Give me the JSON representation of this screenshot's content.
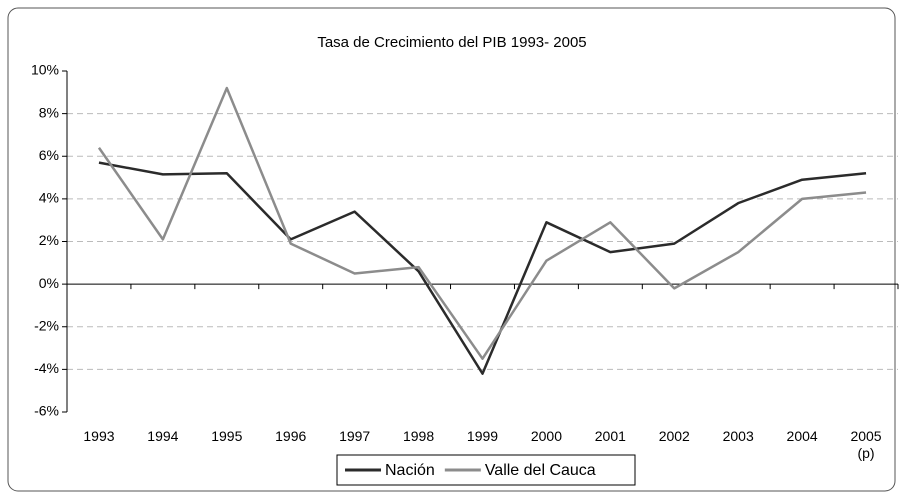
{
  "chart_data": {
    "type": "line",
    "title": "Tasa de Crecimiento del PIB 1993- 2005",
    "categories": [
      "1993",
      "1994",
      "1995",
      "1996",
      "1997",
      "1998",
      "1999",
      "2000",
      "2001",
      "2002",
      "2003",
      "2004",
      "2005\n(p)"
    ],
    "series": [
      {
        "name": "Nación",
        "color": "#2b2b2b",
        "values": [
          5.7,
          5.15,
          5.2,
          2.1,
          3.4,
          0.6,
          -4.2,
          2.9,
          1.5,
          1.9,
          3.8,
          4.9,
          5.2
        ]
      },
      {
        "name": "Valle del Cauca",
        "color": "#8c8c8c",
        "values": [
          6.4,
          2.1,
          9.2,
          1.9,
          0.5,
          0.8,
          -3.5,
          1.1,
          2.9,
          -0.2,
          1.5,
          4.0,
          4.3
        ]
      }
    ],
    "ylim": [
      -6,
      10
    ],
    "yticks": [
      {
        "value": -6,
        "label": "-6%"
      },
      {
        "value": -4,
        "label": "-4%"
      },
      {
        "value": -2,
        "label": "-2%"
      },
      {
        "value": 0,
        "label": "0%"
      },
      {
        "value": 2,
        "label": "2%"
      },
      {
        "value": 4,
        "label": "4%"
      },
      {
        "value": 6,
        "label": "6%"
      },
      {
        "value": 8,
        "label": "8%"
      },
      {
        "value": 10,
        "label": "10%"
      }
    ],
    "grid": true,
    "legend": "bottom"
  }
}
